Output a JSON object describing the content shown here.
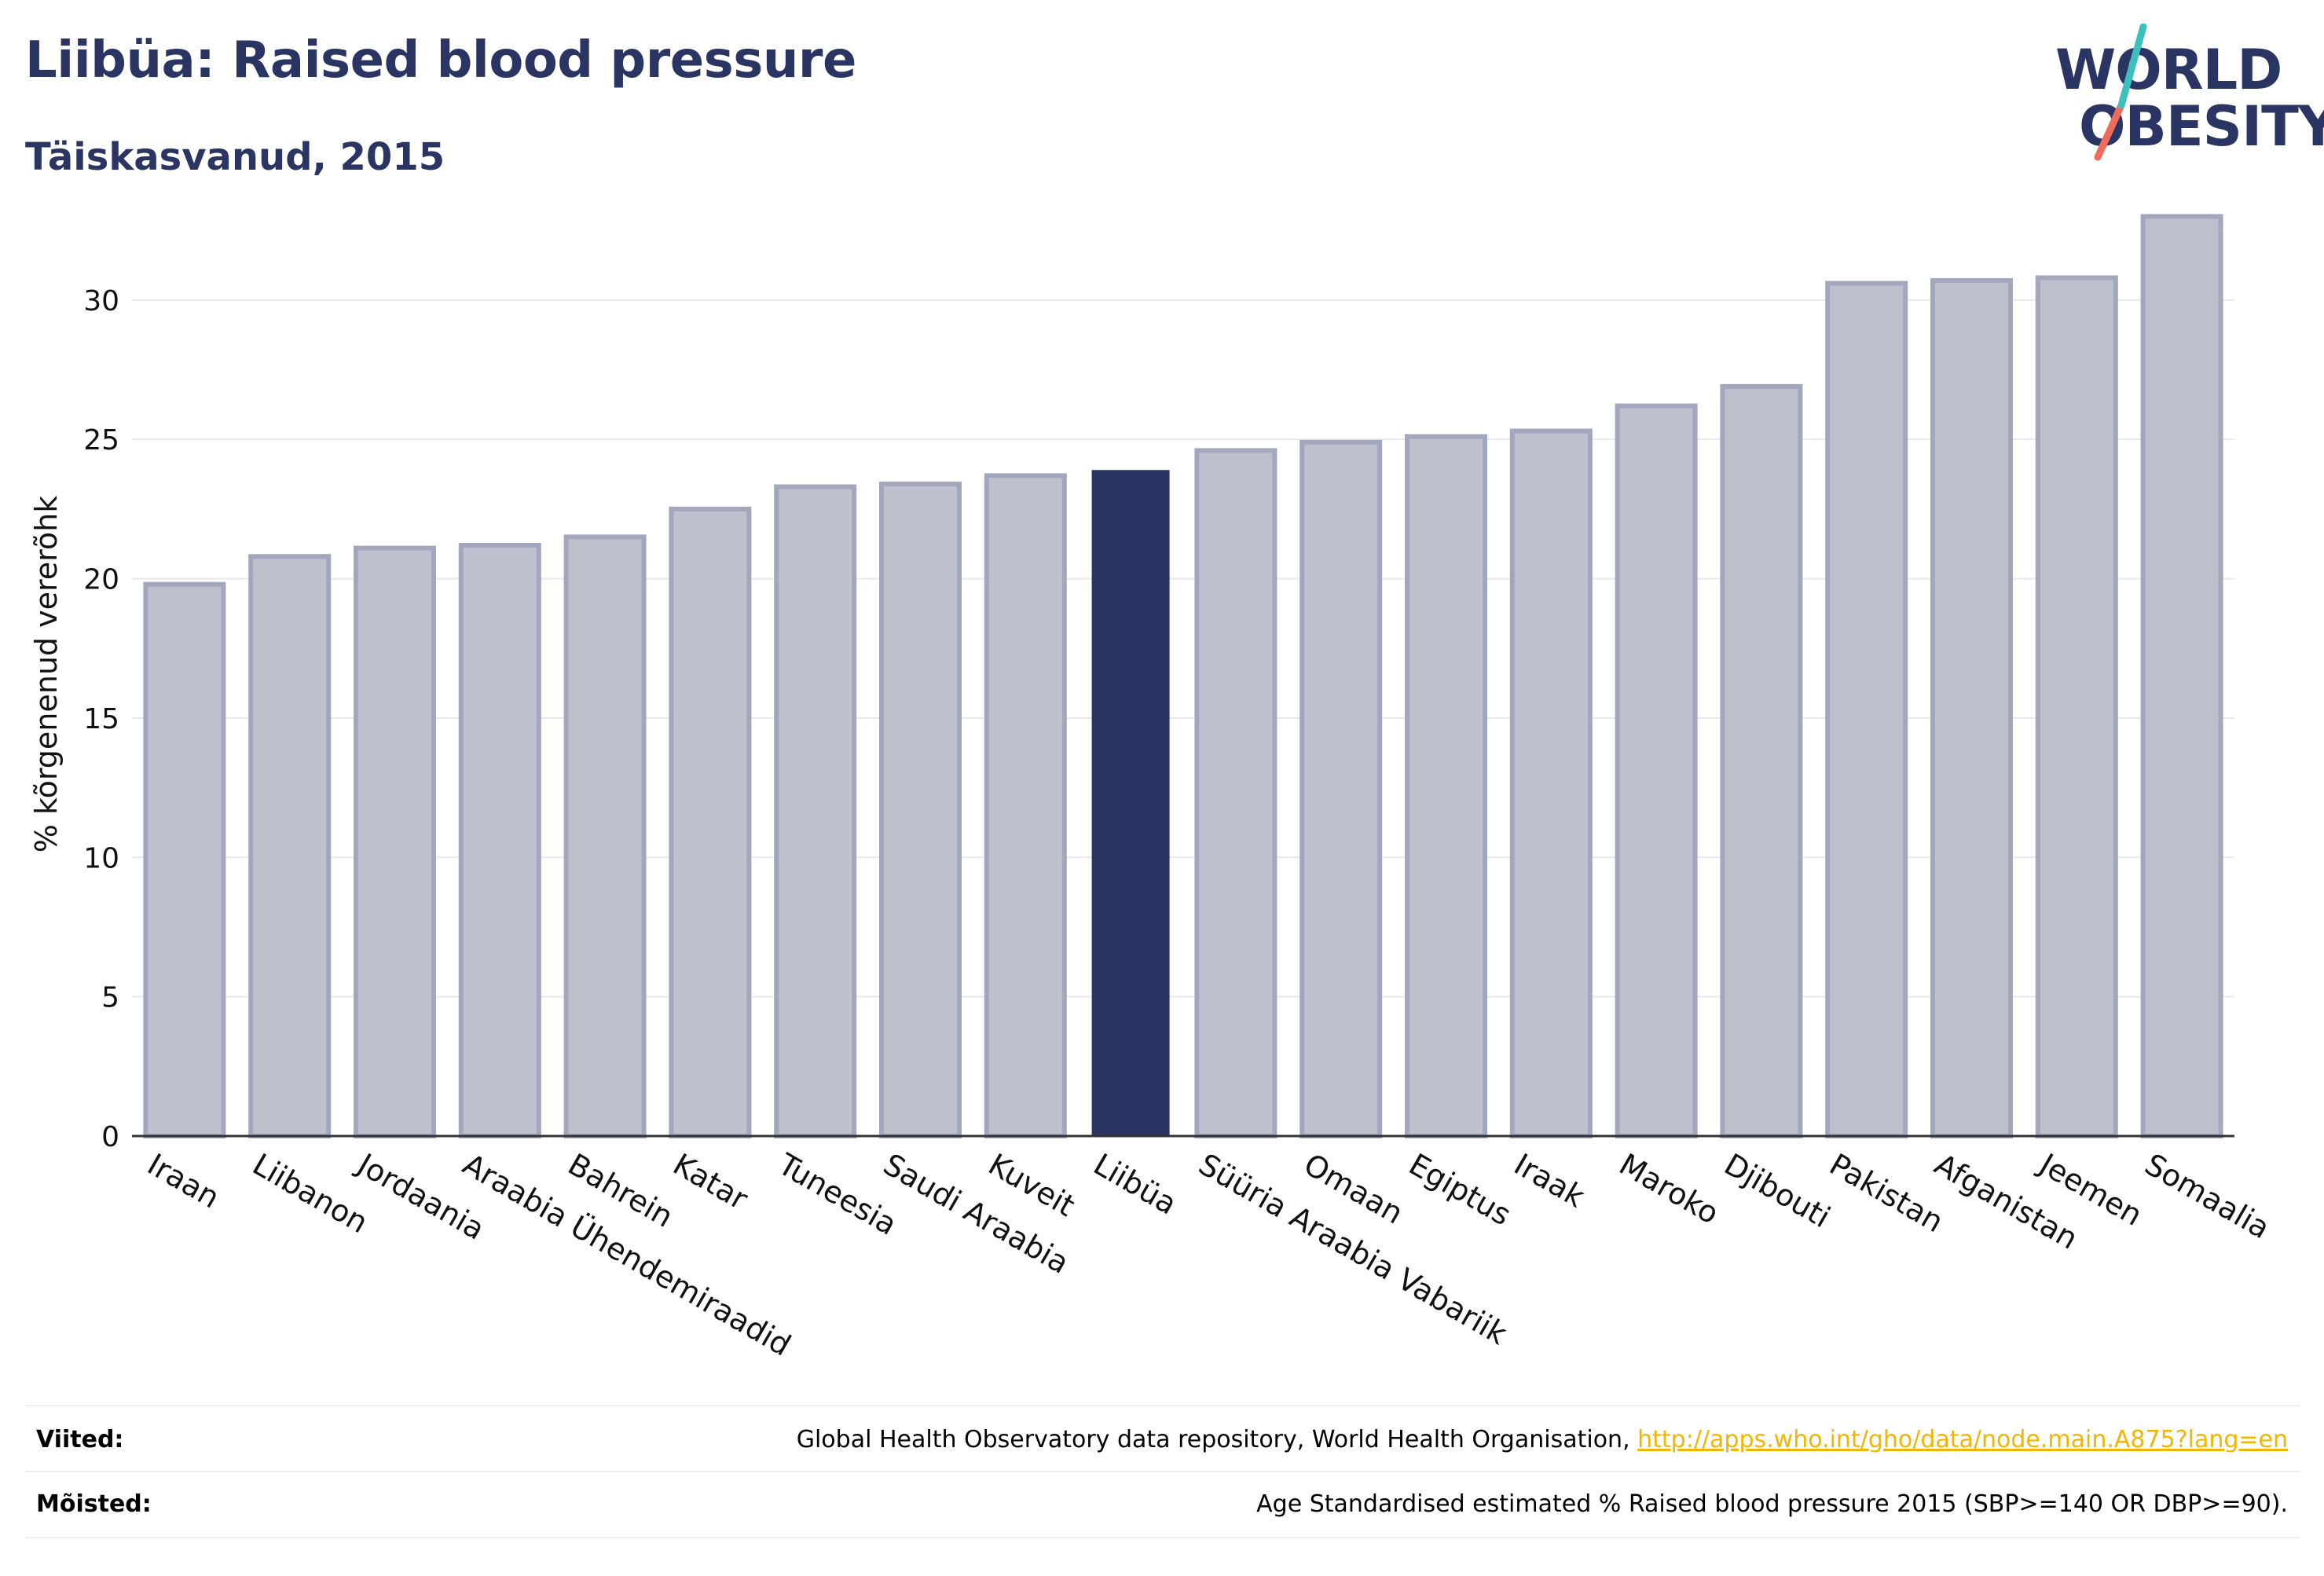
{
  "header": {
    "title": "Liibüa: Raised blood pressure",
    "subtitle": "Täiskasvanud, 2015"
  },
  "logo": {
    "line1": "WORLD",
    "line2": "OBESITY",
    "accent_teal": "#3ebfbf",
    "accent_red": "#ef6b5b"
  },
  "colors": {
    "highlight": "#2b3563",
    "bar": "#bec1cd",
    "bar_edge": "#a3a7bd",
    "title": "#2b3563"
  },
  "chart_data": {
    "type": "bar",
    "ylabel": "% kõrgenenud vererõhk",
    "ylim": [
      0,
      34
    ],
    "yticks": [
      0,
      5,
      10,
      15,
      20,
      25,
      30
    ],
    "grid": true,
    "highlight": "Liibüa",
    "categories": [
      "Iraan",
      "Liibanon",
      "Jordaania",
      "Araabia Ühendemiraadid",
      "Bahrein",
      "Katar",
      "Tuneesia",
      "Saudi Araabia",
      "Kuveit",
      "Liibüa",
      "Süüria Araabia Vabariik",
      "Omaan",
      "Egiptus",
      "Iraak",
      "Maroko",
      "Djibouti",
      "Pakistan",
      "Afganistan",
      "Jeemen",
      "Somaalia"
    ],
    "values": [
      19.8,
      20.8,
      21.1,
      21.2,
      21.5,
      22.5,
      23.3,
      23.4,
      23.7,
      23.9,
      24.6,
      24.9,
      25.1,
      25.3,
      26.2,
      26.9,
      30.6,
      30.7,
      30.8,
      33.0
    ]
  },
  "footer": {
    "sources_label": "Viited:",
    "sources_text": "Global Health Observatory data repository, World Health Organisation, ",
    "sources_link": "http://apps.who.int/gho/data/node.main.A875?lang=en",
    "definitions_label": "Mõisted:",
    "definitions_text": "Age Standardised estimated % Raised blood pressure 2015 (SBP>=140 OR DBP>=90)."
  }
}
